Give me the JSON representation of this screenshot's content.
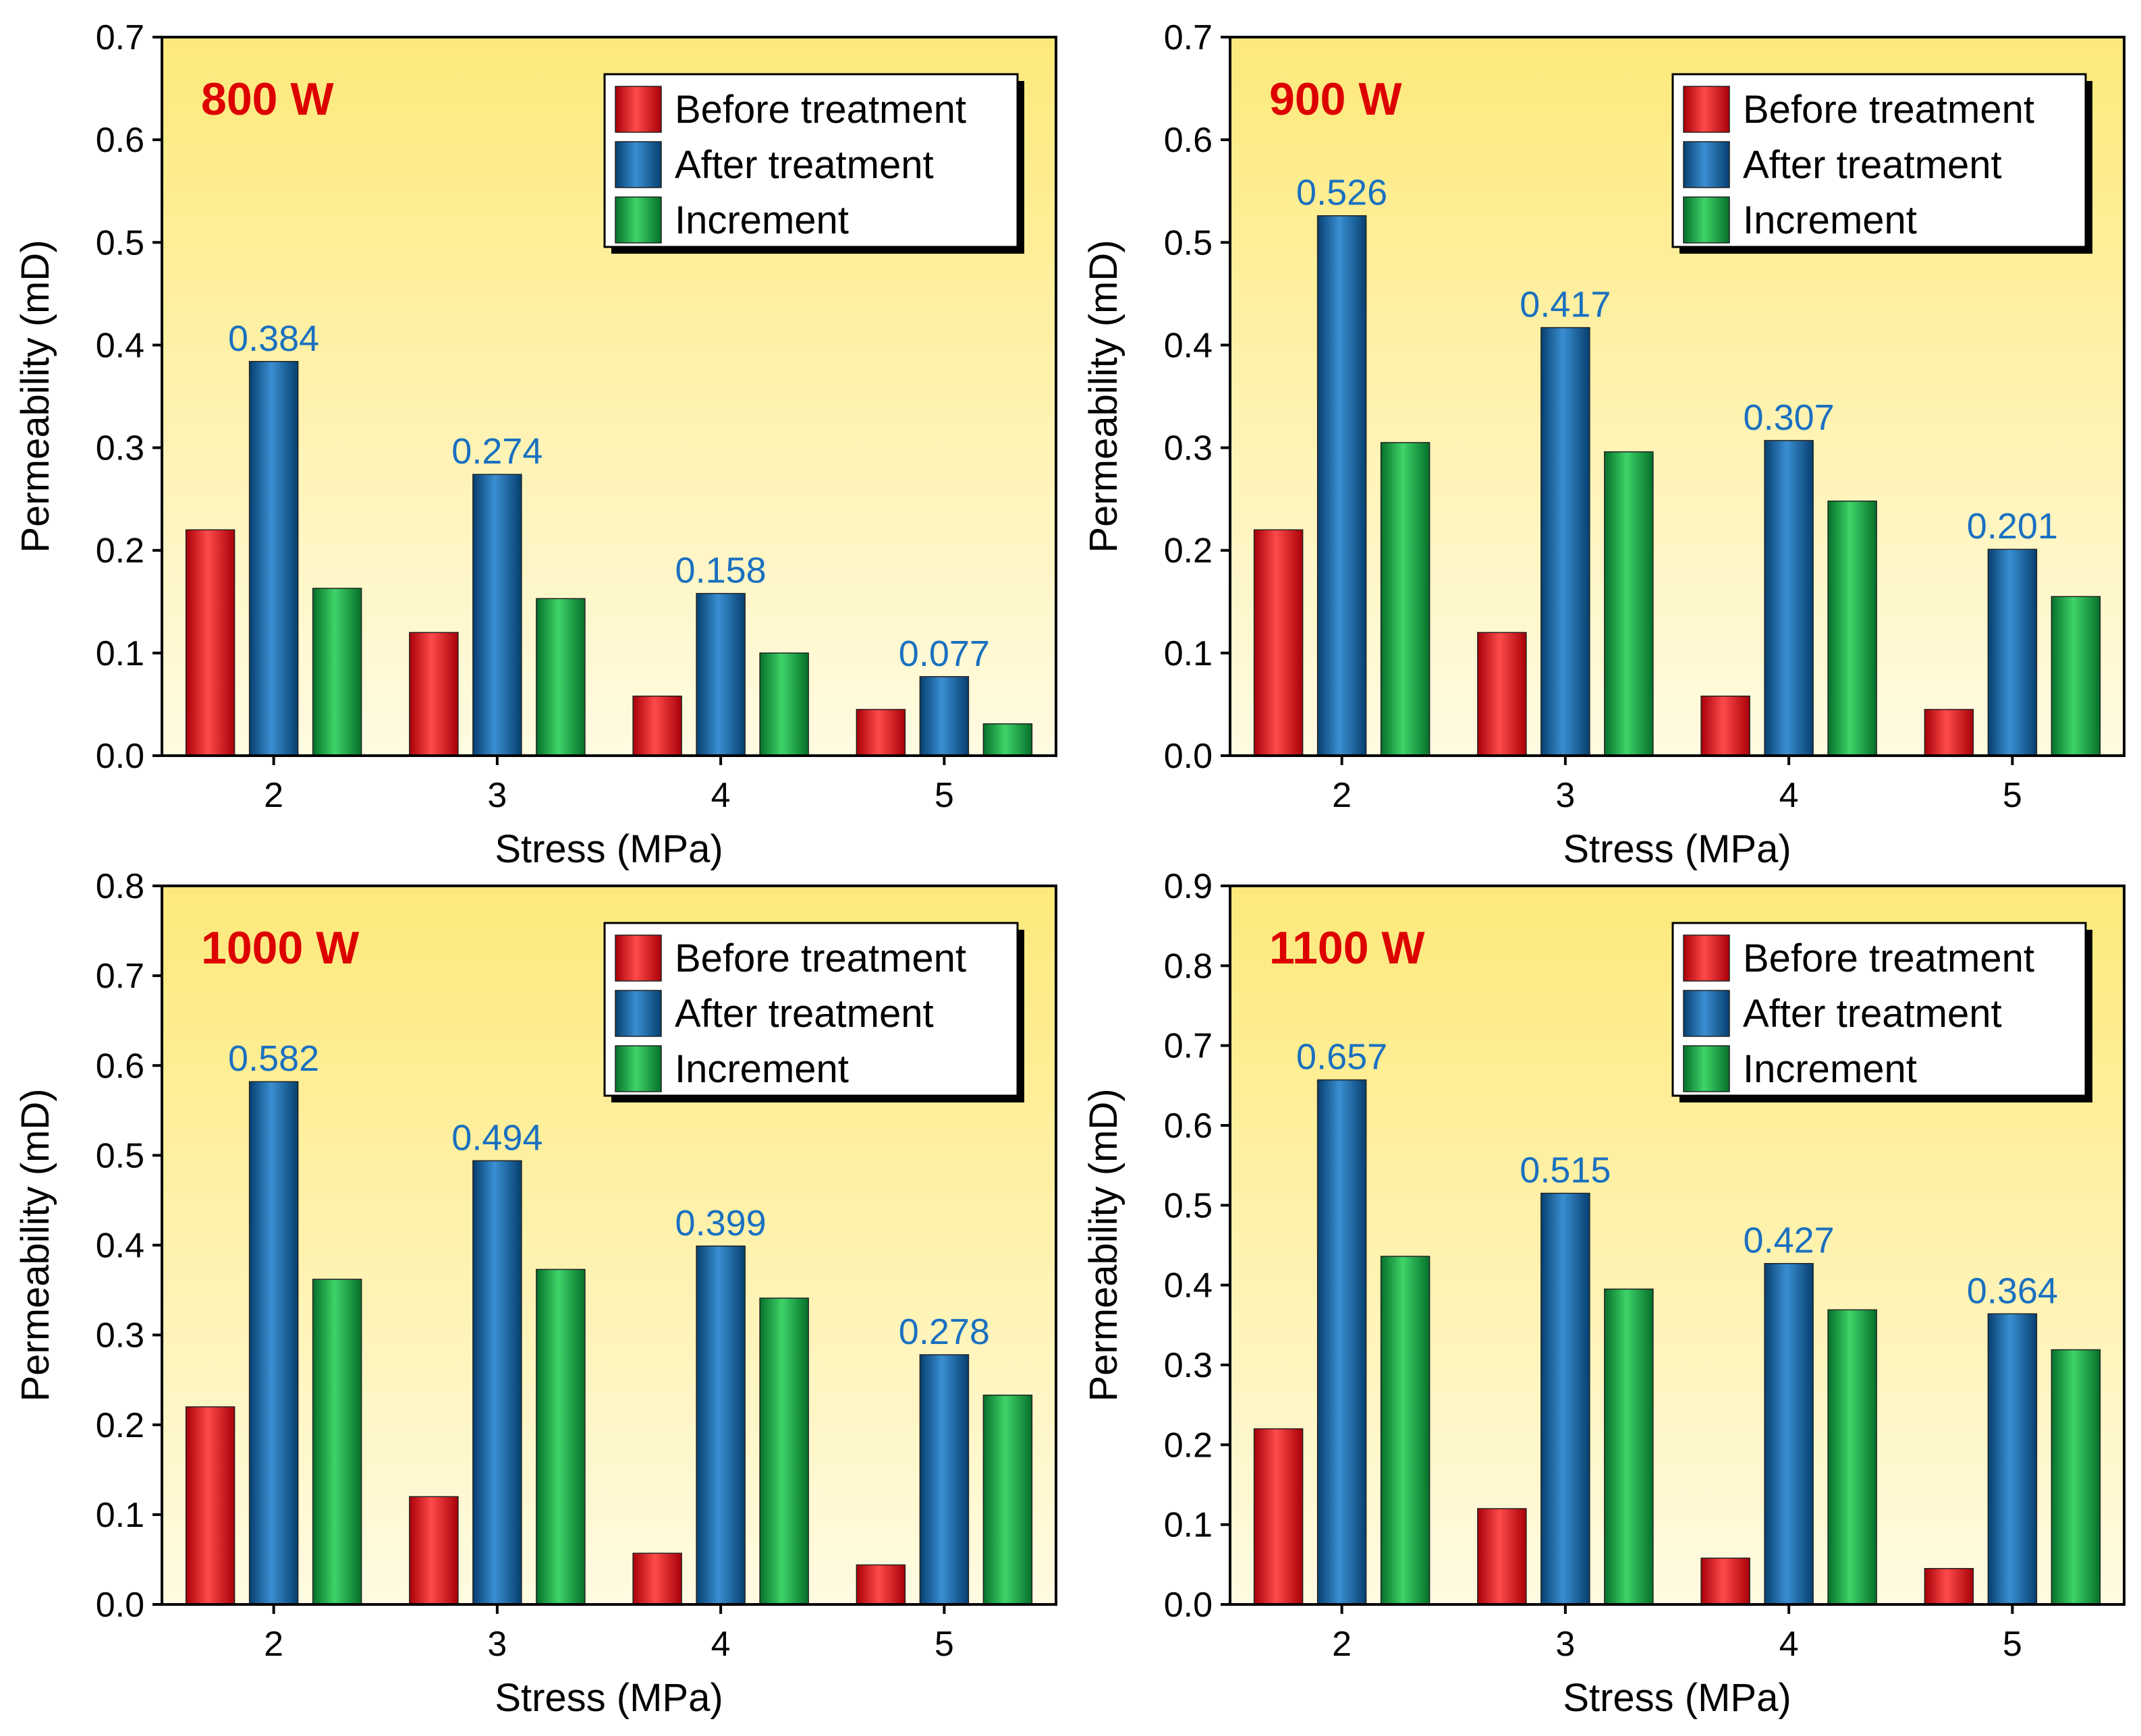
{
  "colors": {
    "before": "#e8101a",
    "after": "#0e63a4",
    "increment": "#0ea53a",
    "title": "#dd0000",
    "data_label": "#1a70c0",
    "bg_top": "#fde97a",
    "bg_bottom": "#fffbe2"
  },
  "chart_data": [
    {
      "type": "bar",
      "title": "800 W",
      "xlabel": "Stress (MPa)",
      "ylabel": "Permeability (mD)",
      "categories": [
        "2",
        "3",
        "4",
        "5"
      ],
      "ylim": [
        0,
        0.7
      ],
      "yticks": [
        "0.0",
        "0.1",
        "0.2",
        "0.3",
        "0.4",
        "0.5",
        "0.6",
        "0.7"
      ],
      "legend": "top-right",
      "series": [
        {
          "name": "Before treatment",
          "key": "before",
          "values": [
            0.22,
            0.12,
            0.058,
            0.045
          ]
        },
        {
          "name": "After treatment",
          "key": "after",
          "values": [
            0.384,
            0.274,
            0.158,
            0.077
          ],
          "labels": [
            "0.384",
            "0.274",
            "0.158",
            "0.077"
          ]
        },
        {
          "name": "Increment",
          "key": "increment",
          "values": [
            0.163,
            0.153,
            0.1,
            0.031
          ]
        }
      ]
    },
    {
      "type": "bar",
      "title": "900 W",
      "xlabel": "Stress (MPa)",
      "ylabel": "Permeability (mD)",
      "categories": [
        "2",
        "3",
        "4",
        "5"
      ],
      "ylim": [
        0,
        0.7
      ],
      "yticks": [
        "0.0",
        "0.1",
        "0.2",
        "0.3",
        "0.4",
        "0.5",
        "0.6",
        "0.7"
      ],
      "legend": "top-right",
      "series": [
        {
          "name": "Before treatment",
          "key": "before",
          "values": [
            0.22,
            0.12,
            0.058,
            0.045
          ]
        },
        {
          "name": "After treatment",
          "key": "after",
          "values": [
            0.526,
            0.417,
            0.307,
            0.201
          ],
          "labels": [
            "0.526",
            "0.417",
            "0.307",
            "0.201"
          ]
        },
        {
          "name": "Increment",
          "key": "increment",
          "values": [
            0.305,
            0.296,
            0.248,
            0.155
          ]
        }
      ]
    },
    {
      "type": "bar",
      "title": "1000 W",
      "xlabel": "Stress (MPa)",
      "ylabel": "Permeability (mD)",
      "categories": [
        "2",
        "3",
        "4",
        "5"
      ],
      "ylim": [
        0,
        0.8
      ],
      "yticks": [
        "0.0",
        "0.1",
        "0.2",
        "0.3",
        "0.4",
        "0.5",
        "0.6",
        "0.7",
        "0.8"
      ],
      "legend": "top-right",
      "series": [
        {
          "name": "Before treatment",
          "key": "before",
          "values": [
            0.22,
            0.12,
            0.057,
            0.044
          ]
        },
        {
          "name": "After treatment",
          "key": "after",
          "values": [
            0.582,
            0.494,
            0.399,
            0.278
          ],
          "labels": [
            "0.582",
            "0.494",
            "0.399",
            "0.278"
          ]
        },
        {
          "name": "Increment",
          "key": "increment",
          "values": [
            0.362,
            0.373,
            0.341,
            0.233
          ]
        }
      ]
    },
    {
      "type": "bar",
      "title": "1100 W",
      "xlabel": "Stress (MPa)",
      "ylabel": "Permeability (mD)",
      "categories": [
        "2",
        "3",
        "4",
        "5"
      ],
      "ylim": [
        0,
        0.9
      ],
      "yticks": [
        "0.0",
        "0.1",
        "0.2",
        "0.3",
        "0.4",
        "0.5",
        "0.6",
        "0.7",
        "0.8",
        "0.9"
      ],
      "legend": "top-right",
      "series": [
        {
          "name": "Before treatment",
          "key": "before",
          "values": [
            0.22,
            0.12,
            0.058,
            0.045
          ]
        },
        {
          "name": "After treatment",
          "key": "after",
          "values": [
            0.657,
            0.515,
            0.427,
            0.364
          ],
          "labels": [
            "0.657",
            "0.515",
            "0.427",
            "0.364"
          ]
        },
        {
          "name": "Increment",
          "key": "increment",
          "values": [
            0.436,
            0.395,
            0.369,
            0.319
          ]
        }
      ]
    }
  ]
}
